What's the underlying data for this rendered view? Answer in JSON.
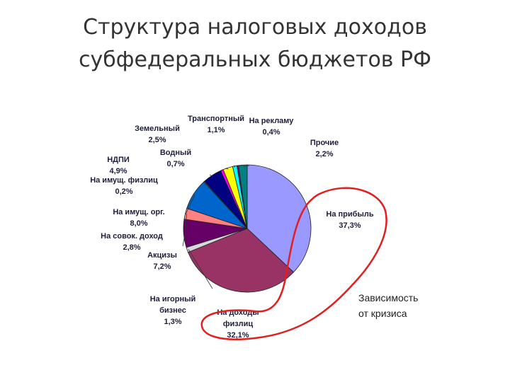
{
  "slide": {
    "title_line1": "Структура налоговых доходов",
    "title_line2": "субфедеральных бюджетов РФ"
  },
  "chart_data": {
    "type": "pie",
    "title": "Структура налоговых доходов субфедеральных бюджетов РФ",
    "slices": [
      {
        "label": "На прибыль",
        "value": 37.3,
        "value_text": "37,3%",
        "color": "#9999ff"
      },
      {
        "label": "На доходы физлиц",
        "value": 32.1,
        "value_text": "32,1%",
        "color": "#993366"
      },
      {
        "label": "На игорный бизнес",
        "value": 1.3,
        "value_text": "1,3%",
        "color": "#d9d9d9"
      },
      {
        "label": "Акцизы",
        "value": 7.2,
        "value_text": "7,2%",
        "color": "#660066"
      },
      {
        "label": "На совок. доход",
        "value": 2.8,
        "value_text": "2,8%",
        "color": "#ff8080"
      },
      {
        "label": "На имущ. орг.",
        "value": 8.0,
        "value_text": "8,0%",
        "color": "#0066cc"
      },
      {
        "label": "На имущ. физлиц",
        "value": 0.2,
        "value_text": "0,2%",
        "color": "#ccccff"
      },
      {
        "label": "НДПИ",
        "value": 4.9,
        "value_text": "4,9%",
        "color": "#000080"
      },
      {
        "label": "Водный",
        "value": 0.7,
        "value_text": "0,7%",
        "color": "#ff00ff"
      },
      {
        "label": "Земельный",
        "value": 2.5,
        "value_text": "2,5%",
        "color": "#ffff00"
      },
      {
        "label": "Транспортный",
        "value": 1.1,
        "value_text": "1,1%",
        "color": "#00ffff"
      },
      {
        "label": "На рекламу",
        "value": 0.4,
        "value_text": "0,4%",
        "color": "#800080"
      },
      {
        "label": "Прочие",
        "value": 2.2,
        "value_text": "2,2%",
        "color": "#008080"
      }
    ],
    "annotation": "Зависимость от кризиса",
    "annotation_lines": [
      "Зависимость",
      "от кризиса"
    ],
    "annotation_color": "#e31e1e"
  }
}
